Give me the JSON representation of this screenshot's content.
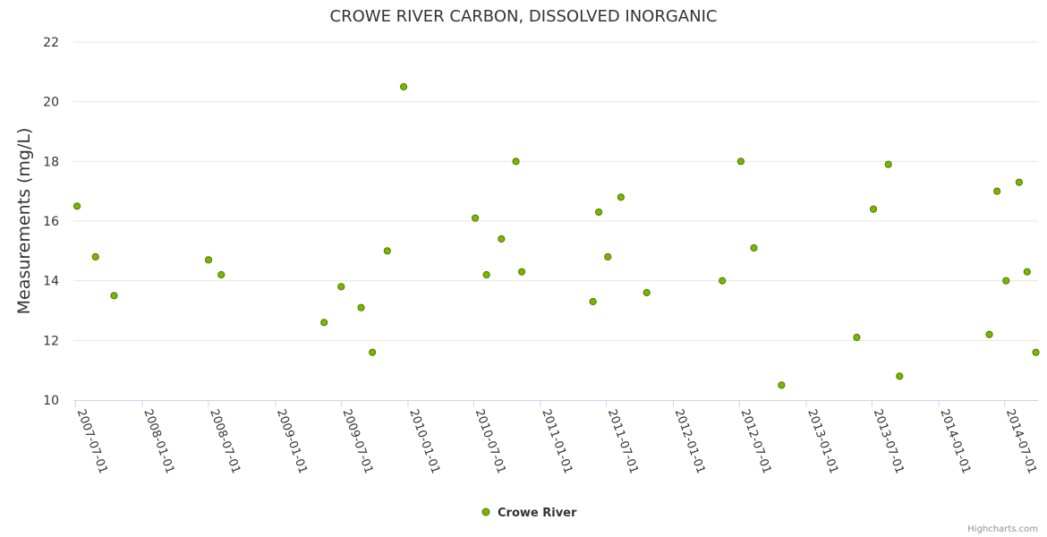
{
  "chart_data": {
    "type": "scatter",
    "title": "CROWE RIVER CARBON, DISSOLVED INORGANIC",
    "ylabel": "Measurements (mg/L)",
    "xlabel": "",
    "ylim": [
      10,
      22
    ],
    "yticks": [
      10,
      12,
      14,
      16,
      18,
      20,
      22
    ],
    "xrange": [
      "2007-06-25",
      "2014-10-01"
    ],
    "xticks": [
      "2007-07-01",
      "2008-01-01",
      "2008-07-01",
      "2009-01-01",
      "2009-07-01",
      "2010-01-01",
      "2010-07-01",
      "2011-01-01",
      "2011-07-01",
      "2012-01-01",
      "2012-07-01",
      "2013-01-01",
      "2013-07-01",
      "2014-01-01",
      "2014-07-01"
    ],
    "grid": true,
    "legend_position": "bottom-center",
    "series": [
      {
        "name": "Crowe River",
        "color": "#7cb500",
        "points": [
          {
            "x": "2007-07-05",
            "y": 16.5
          },
          {
            "x": "2007-08-25",
            "y": 14.8
          },
          {
            "x": "2007-10-15",
            "y": 13.5
          },
          {
            "x": "2008-07-01",
            "y": 14.7
          },
          {
            "x": "2008-08-05",
            "y": 14.2
          },
          {
            "x": "2009-05-15",
            "y": 12.6
          },
          {
            "x": "2009-07-01",
            "y": 13.8
          },
          {
            "x": "2009-08-25",
            "y": 13.1
          },
          {
            "x": "2009-09-25",
            "y": 11.6
          },
          {
            "x": "2009-11-05",
            "y": 15.0
          },
          {
            "x": "2009-12-20",
            "y": 20.5
          },
          {
            "x": "2010-07-05",
            "y": 16.1
          },
          {
            "x": "2010-08-05",
            "y": 14.2
          },
          {
            "x": "2010-09-15",
            "y": 15.4
          },
          {
            "x": "2010-10-25",
            "y": 18.0
          },
          {
            "x": "2010-11-10",
            "y": 14.3
          },
          {
            "x": "2011-05-25",
            "y": 13.3
          },
          {
            "x": "2011-06-10",
            "y": 16.3
          },
          {
            "x": "2011-07-05",
            "y": 14.8
          },
          {
            "x": "2011-08-10",
            "y": 16.8
          },
          {
            "x": "2011-10-20",
            "y": 13.6
          },
          {
            "x": "2012-05-15",
            "y": 14.0
          },
          {
            "x": "2012-07-05",
            "y": 18.0
          },
          {
            "x": "2012-08-10",
            "y": 15.1
          },
          {
            "x": "2012-10-25",
            "y": 10.5
          },
          {
            "x": "2013-05-20",
            "y": 12.1
          },
          {
            "x": "2013-07-05",
            "y": 16.4
          },
          {
            "x": "2013-08-15",
            "y": 17.9
          },
          {
            "x": "2013-09-15",
            "y": 10.8
          },
          {
            "x": "2014-05-20",
            "y": 12.2
          },
          {
            "x": "2014-06-10",
            "y": 17.0
          },
          {
            "x": "2014-07-05",
            "y": 14.0
          },
          {
            "x": "2014-08-10",
            "y": 17.3
          },
          {
            "x": "2014-09-01",
            "y": 14.3
          },
          {
            "x": "2014-09-25",
            "y": 11.6
          }
        ]
      }
    ]
  },
  "credits": "Highcharts.com"
}
